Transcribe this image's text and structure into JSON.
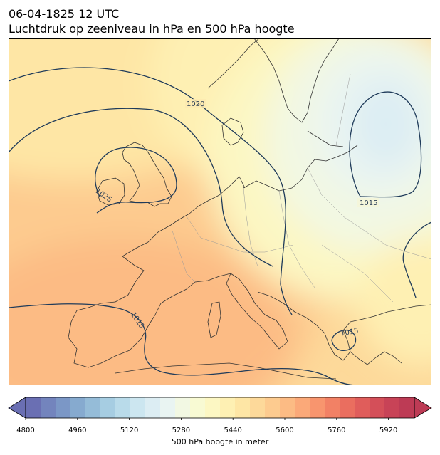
{
  "header": {
    "datetime": "06-04-1825 12 UTC",
    "subtitle": "Luchtdruk op zeeniveau in hPa en 500 hPa hoogte"
  },
  "map": {
    "region": "Europe",
    "isobar_labels": [
      "1020",
      "1025",
      "1015",
      "1015",
      "1015"
    ],
    "isobar_color": "#1f3b5a",
    "coastline_color": "#333333"
  },
  "colorbar": {
    "label": "500 hPa hoogte in meter",
    "tick_labels": [
      "4800",
      "4960",
      "5120",
      "5280",
      "5440",
      "5600",
      "5760",
      "5920"
    ],
    "min": 4800,
    "max": 6000,
    "step": 40,
    "extend": "both",
    "colormap": "RdYlBu_r",
    "colors": [
      "#6a6fb3",
      "#7384bd",
      "#7b97c6",
      "#86aacf",
      "#95bcd8",
      "#a6cde2",
      "#b9dbea",
      "#cce6f0",
      "#dcedf3",
      "#e9f4f2",
      "#f2f8e3",
      "#f8fad3",
      "#fcf7c3",
      "#fef0b3",
      "#fee6a5",
      "#fdd99a",
      "#fdcb8f",
      "#fcbb84",
      "#fba979",
      "#f8956e",
      "#f28165",
      "#ea6e5f",
      "#e05d5b",
      "#d44f59",
      "#c84357",
      "#bd3b55"
    ]
  }
}
